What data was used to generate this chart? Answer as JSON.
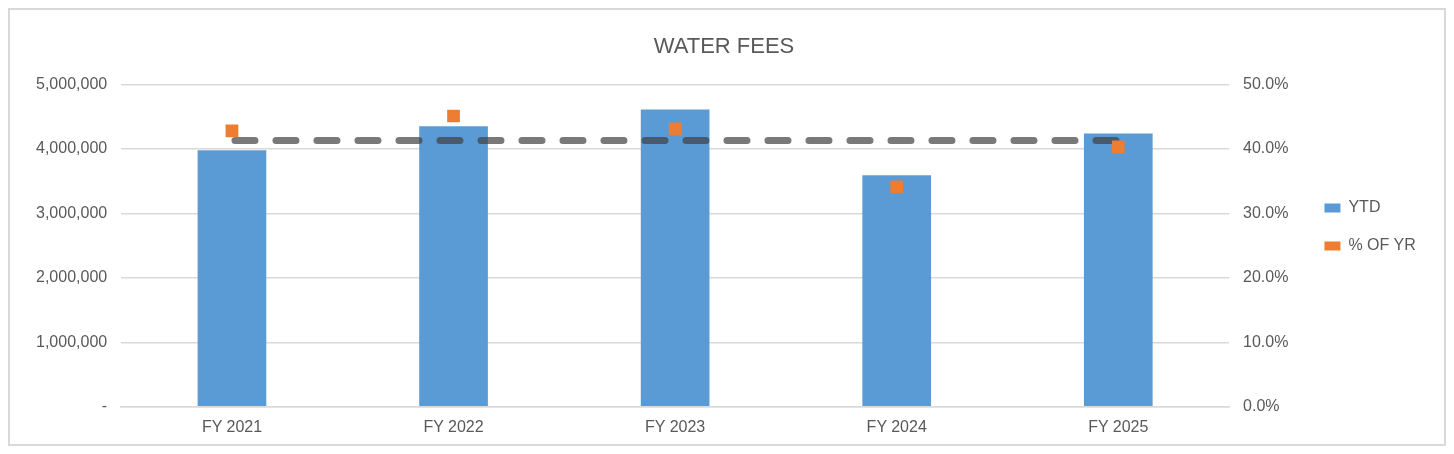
{
  "chart_data": {
    "type": "bar",
    "title": "WATER FEES",
    "categories": [
      "FY 2021",
      "FY 2022",
      "FY 2023",
      "FY 2024",
      "FY 2025"
    ],
    "series": [
      {
        "name": "YTD",
        "color": "#5b9bd5",
        "values": [
          3980000,
          4350000,
          4610000,
          3590000,
          4240000
        ]
      },
      {
        "name": "% OF YR",
        "type": "scatter",
        "axis": "y2",
        "color": "#ed7d31",
        "marker": "square",
        "values": [
          42.8,
          45.1,
          43.1,
          34.1,
          40.3
        ]
      }
    ],
    "ylim": [
      0,
      5000000
    ],
    "yticks": [
      {
        "value": 0,
        "label": "-"
      },
      {
        "value": 1000000,
        "label": "1,000,000"
      },
      {
        "value": 2000000,
        "label": "2,000,000"
      },
      {
        "value": 3000000,
        "label": "3,000,000"
      },
      {
        "value": 4000000,
        "label": "4,000,000"
      },
      {
        "value": 5000000,
        "label": "5,000,000"
      }
    ],
    "y2lim": [
      0,
      50
    ],
    "y2ticks": [
      {
        "value": 0,
        "label": "0.0%"
      },
      {
        "value": 10,
        "label": "10.0%"
      },
      {
        "value": 20,
        "label": "20.0%"
      },
      {
        "value": 30,
        "label": "30.0%"
      },
      {
        "value": 40,
        "label": "40.0%"
      },
      {
        "value": 50,
        "label": "50.0%"
      }
    ],
    "ref_lines": [
      {
        "axis": "y2",
        "value": 41.3,
        "color": "#404040",
        "line_style": "dashed"
      }
    ],
    "grid": "y",
    "legend": "right"
  }
}
